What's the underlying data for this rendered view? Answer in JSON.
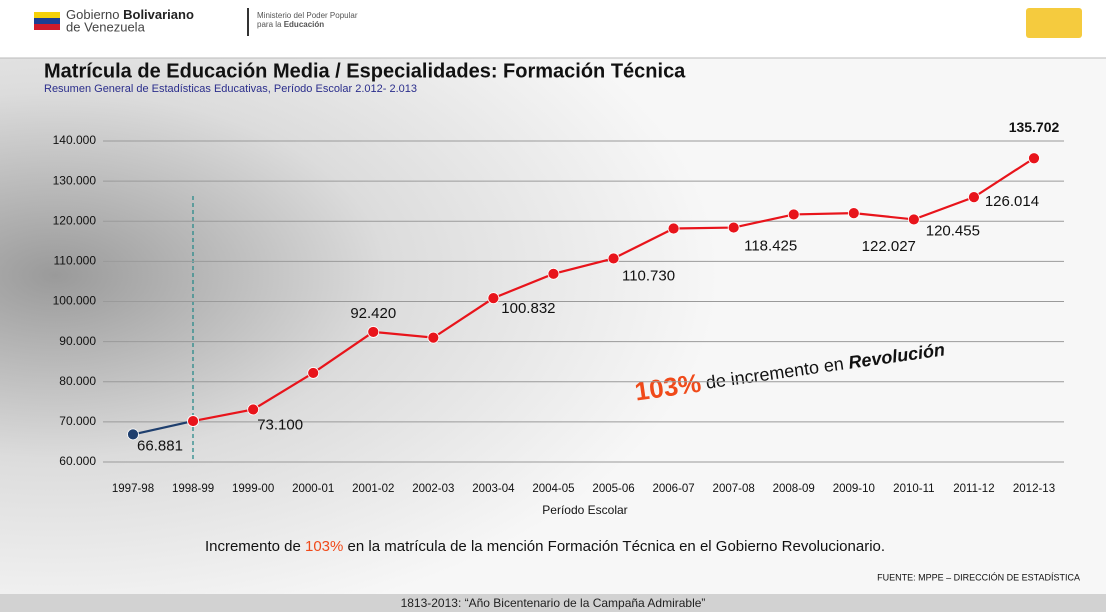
{
  "header": {
    "gov_a": "Gobierno",
    "gov_b": "Bolivariano",
    "gov_c": "de Venezuela",
    "ministry_a": "Ministerio del Poder Popular",
    "ministry_b": "para la",
    "ministry_c": "Educación"
  },
  "chart_data": {
    "type": "line",
    "title": "Matrícula de Educación Media / Especialidades: Formación Técnica",
    "subtitle": "Resumen General de Estadísticas Educativas, Período Escolar 2.012- 2.013",
    "xlabel": "Período Escolar",
    "categories": [
      "1997-98",
      "1998-99",
      "1999-00",
      "2000-01",
      "2001-02",
      "2002-03",
      "2003-04",
      "2004-05",
      "2005-06",
      "2006-07",
      "2007-08",
      "2008-09",
      "2009-10",
      "2010-11",
      "2011-12",
      "2012-13"
    ],
    "series": [
      {
        "color": "#1f3f6e",
        "values": [
          66881,
          70200,
          null,
          null,
          null,
          null,
          null,
          null,
          null,
          null,
          null,
          null,
          null,
          null,
          null,
          null
        ],
        "value_labels": [
          "66.881",
          null,
          null,
          null,
          null,
          null,
          null,
          null,
          null,
          null,
          null,
          null,
          null,
          null,
          null,
          null
        ]
      },
      {
        "color": "#e8141b",
        "values": [
          null,
          70200,
          73100,
          82200,
          92420,
          91000,
          100832,
          106900,
          110730,
          118200,
          118425,
          121700,
          122027,
          120455,
          126014,
          135702
        ],
        "value_labels": [
          null,
          null,
          "73.100",
          null,
          "92.420",
          null,
          "100.832",
          null,
          "110.730",
          null,
          "118.425",
          null,
          "122.027",
          "120.455",
          "126.014",
          "135.702"
        ]
      }
    ],
    "ylim": [
      60000,
      140000
    ],
    "yticks": [
      {
        "value": 60000,
        "label": "60.000"
      },
      {
        "value": 70000,
        "label": "70.000"
      },
      {
        "value": 80000,
        "label": "80.000"
      },
      {
        "value": 90000,
        "label": "90.000"
      },
      {
        "value": 100000,
        "label": "100.000"
      },
      {
        "value": 110000,
        "label": "110.000"
      },
      {
        "value": 120000,
        "label": "120.000"
      },
      {
        "value": 130000,
        "label": "130.000"
      },
      {
        "value": 140000,
        "label": "140.000"
      }
    ],
    "grid": true,
    "annotation": {
      "highlight": "103%",
      "text": "de incremento en",
      "emphasis": "Revolución"
    }
  },
  "footer": {
    "before": "Incremento de",
    "highlight": "103%",
    "after": "en la matrícula de la mención Formación Técnica en el Gobierno Revolucionario.",
    "source": "FUENTE: MPPE – DIRECCIÓN DE ESTADÍSTICA",
    "motto": "1813-2013: “Año Bicentenario de la Campaña Admirable”"
  }
}
